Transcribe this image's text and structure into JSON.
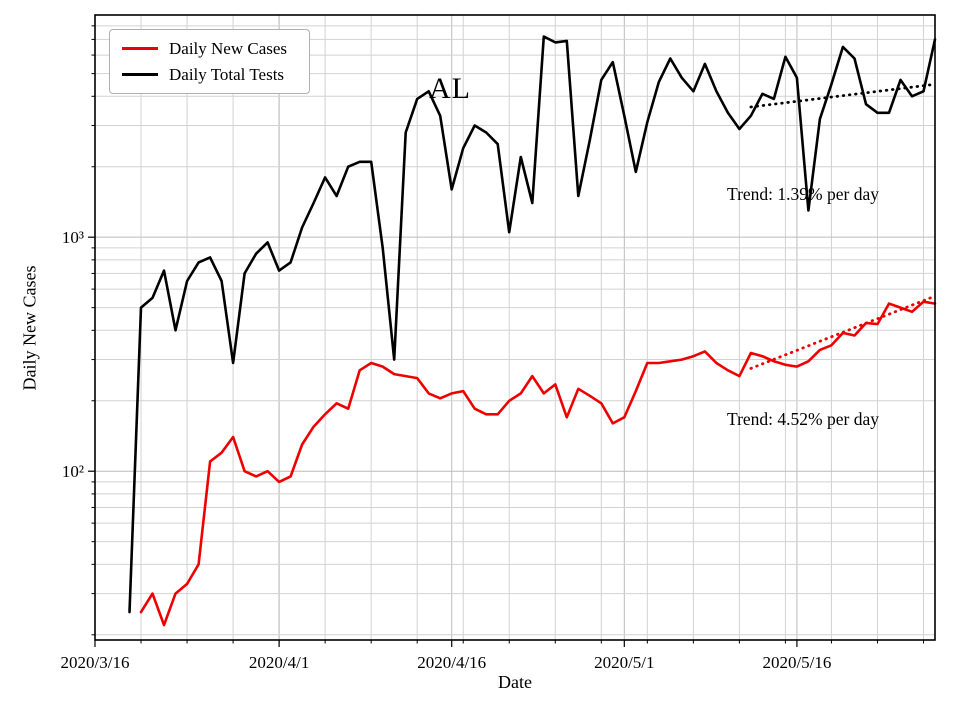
{
  "chart_data": {
    "type": "line",
    "title": "AL",
    "xlabel": "Date",
    "ylabel": "Daily New Cases",
    "ylog": true,
    "ylim": [
      19,
      8900
    ],
    "grid": true,
    "legend_position": "upper left",
    "x": [
      "2020/3/16",
      "2020/3/17",
      "2020/3/18",
      "2020/3/19",
      "2020/3/20",
      "2020/3/21",
      "2020/3/22",
      "2020/3/23",
      "2020/3/24",
      "2020/3/25",
      "2020/3/26",
      "2020/3/27",
      "2020/3/28",
      "2020/3/29",
      "2020/3/30",
      "2020/3/31",
      "2020/4/1",
      "2020/4/2",
      "2020/4/3",
      "2020/4/4",
      "2020/4/5",
      "2020/4/6",
      "2020/4/7",
      "2020/4/8",
      "2020/4/9",
      "2020/4/10",
      "2020/4/11",
      "2020/4/12",
      "2020/4/13",
      "2020/4/14",
      "2020/4/15",
      "2020/4/16",
      "2020/4/17",
      "2020/4/18",
      "2020/4/19",
      "2020/4/20",
      "2020/4/21",
      "2020/4/22",
      "2020/4/23",
      "2020/4/24",
      "2020/4/25",
      "2020/4/26",
      "2020/4/27",
      "2020/4/28",
      "2020/4/29",
      "2020/4/30",
      "2020/5/1",
      "2020/5/2",
      "2020/5/3",
      "2020/5/4",
      "2020/5/5",
      "2020/5/6",
      "2020/5/7",
      "2020/5/8",
      "2020/5/9",
      "2020/5/10",
      "2020/5/11",
      "2020/5/12",
      "2020/5/13",
      "2020/5/14",
      "2020/5/15",
      "2020/5/16",
      "2020/5/17",
      "2020/5/18",
      "2020/5/19",
      "2020/5/20",
      "2020/5/21",
      "2020/5/22",
      "2020/5/23",
      "2020/5/24",
      "2020/5/25",
      "2020/5/26",
      "2020/5/27",
      "2020/5/28"
    ],
    "xticks": {
      "positions": [
        0,
        16,
        31,
        46,
        61
      ],
      "labels": [
        "2020/3/16",
        "2020/4/1",
        "2020/4/16",
        "2020/5/1",
        "2020/5/16"
      ]
    },
    "yticks": {
      "values": [
        100,
        1000
      ],
      "labels": [
        "10²",
        "10³"
      ]
    },
    "series": [
      {
        "name": "Daily New Cases",
        "color": "#ee0000",
        "values": [
          null,
          null,
          null,
          null,
          25,
          30,
          22,
          30,
          33,
          40,
          110,
          120,
          140,
          100,
          95,
          100,
          90,
          95,
          130,
          155,
          175,
          195,
          185,
          270,
          290,
          280,
          260,
          255,
          250,
          215,
          205,
          215,
          220,
          185,
          175,
          175,
          200,
          215,
          255,
          215,
          235,
          170,
          225,
          210,
          195,
          160,
          170,
          220,
          290,
          290,
          295,
          300,
          310,
          325,
          290,
          270,
          255,
          320,
          310,
          295,
          285,
          280,
          295,
          330,
          345,
          390,
          380,
          430,
          425,
          520,
          500,
          480,
          530,
          520
        ]
      },
      {
        "name": "Daily Total Tests",
        "color": "#000000",
        "values": [
          null,
          null,
          null,
          25,
          500,
          550,
          720,
          400,
          650,
          780,
          820,
          650,
          290,
          700,
          850,
          950,
          720,
          780,
          1100,
          1400,
          1800,
          1500,
          2000,
          2100,
          2100,
          900,
          300,
          2800,
          3900,
          4200,
          3300,
          1600,
          2400,
          3000,
          2800,
          2500,
          1050,
          2200,
          1400,
          7200,
          6800,
          6900,
          1500,
          2600,
          4700,
          5600,
          3300,
          1900,
          3100,
          4600,
          5800,
          4800,
          4200,
          5500,
          4200,
          3400,
          2900,
          3300,
          4100,
          3900,
          5900,
          4800,
          1300,
          3200,
          4500,
          6500,
          5800,
          3700,
          3400,
          3400,
          4700,
          4000,
          4200,
          7000
        ]
      }
    ],
    "trends": [
      {
        "name": "tests-trend",
        "color": "#000000",
        "pct_per_day": 1.39,
        "start_day": 57,
        "start_value": 3600,
        "end_day": 73,
        "end_value": 4500
      },
      {
        "name": "cases-trend",
        "color": "#ee0000",
        "pct_per_day": 4.52,
        "start_day": 57,
        "start_value": 275,
        "end_day": 73,
        "end_value": 560
      }
    ],
    "annotations": [
      {
        "text": "Trend: 1.39% per day",
        "color": "#000000"
      },
      {
        "text": "Trend: 4.52% per day",
        "color": "#000000"
      }
    ],
    "colors": {
      "grid_minor": "#d2d2d2",
      "grid_major": "#bcbcbc",
      "frame": "#000000"
    }
  }
}
